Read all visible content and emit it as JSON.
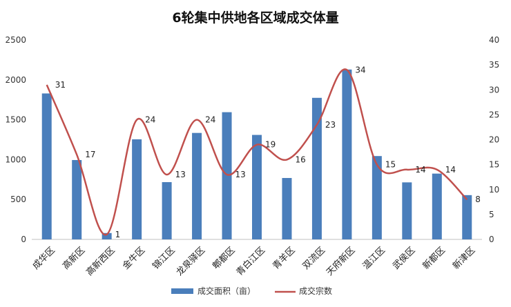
{
  "chart_data": {
    "type": "bar",
    "title": "6轮集中供地各区域成交体量",
    "categories": [
      "成华区",
      "高新区",
      "高新西区",
      "金牛区",
      "锦江区",
      "龙泉驿区",
      "郫都区",
      "青白江区",
      "青羊区",
      "双流区",
      "天府新区",
      "温江区",
      "武侯区",
      "新都区",
      "新津区"
    ],
    "series": [
      {
        "name": "成交面积（亩）",
        "type": "bar",
        "axis": "left",
        "color": "#4A7EBB",
        "values": [
          1830,
          995,
          80,
          1255,
          718,
          1335,
          1595,
          1310,
          770,
          1775,
          2130,
          1045,
          715,
          825,
          555
        ]
      },
      {
        "name": "成交宗数",
        "type": "line",
        "axis": "right",
        "color": "#C0504D",
        "values": [
          31,
          17,
          1,
          24,
          13,
          24,
          13,
          19,
          16,
          23,
          34,
          15,
          14,
          14,
          8
        ],
        "labels": [
          "31",
          "17",
          "1",
          "24",
          "13",
          "24",
          "13",
          "19",
          "16",
          "23",
          "34",
          "15",
          "14",
          "14",
          "8"
        ]
      }
    ],
    "y_left": {
      "min": 0,
      "max": 2500,
      "ticks": [
        "0",
        "500",
        "1000",
        "1500",
        "2000",
        "2500"
      ]
    },
    "y_right": {
      "min": 0,
      "max": 40,
      "ticks": [
        "0",
        "5",
        "10",
        "15",
        "20",
        "25",
        "30",
        "35",
        "40"
      ]
    },
    "grid": false,
    "legend_position": "bottom"
  }
}
